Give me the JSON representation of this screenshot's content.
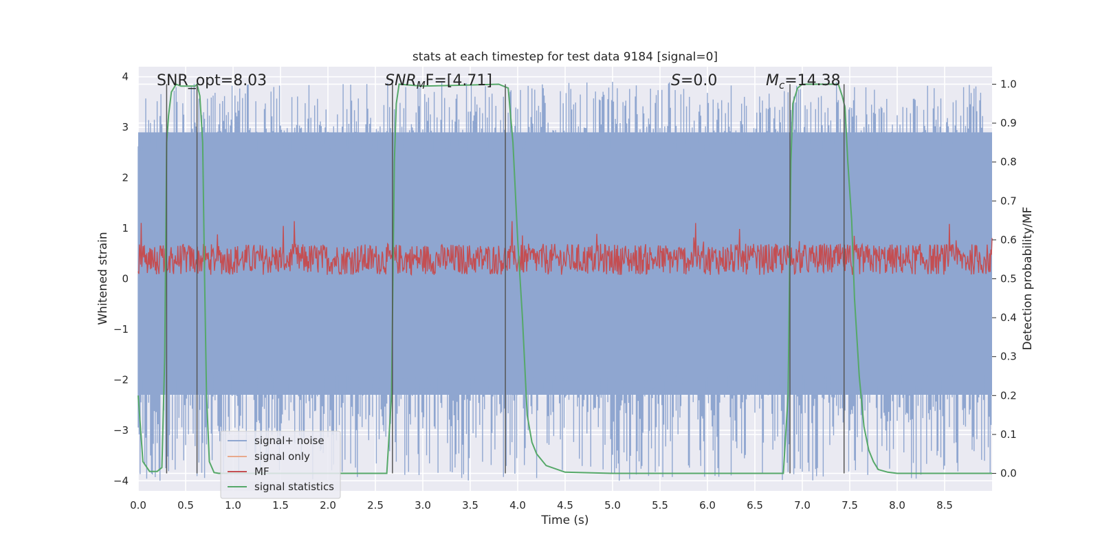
{
  "chart_data": {
    "type": "line",
    "title": "stats at each timestep for test data 9184 [signal=0]",
    "xlabel": "Time (s)",
    "ylabel_left": "Whitened strain",
    "ylabel_right": "Detection probability/MF",
    "xlim": [
      0.0,
      9.0
    ],
    "ylim_left": [
      -4.2,
      4.2
    ],
    "ylim_right": [
      -0.045,
      1.045
    ],
    "grid": true,
    "legend_position": "lower-left",
    "xticks": [
      "0.0",
      "0.5",
      "1.0",
      "1.5",
      "2.0",
      "2.5",
      "3.0",
      "3.5",
      "4.0",
      "4.5",
      "5.0",
      "5.5",
      "6.0",
      "6.5",
      "7.0",
      "7.5",
      "8.0",
      "8.5"
    ],
    "yticks_left": [
      "4",
      "3",
      "2",
      "1",
      "0",
      "−1",
      "−2",
      "−3",
      "−4"
    ],
    "yticks_right": [
      "1.0",
      "0.9",
      "0.8",
      "0.7",
      "0.6",
      "0.5",
      "0.4",
      "0.3",
      "0.2",
      "0.1",
      "0.0"
    ],
    "annotations": {
      "snr_opt": {
        "pre": "SNR_opt=8.03"
      },
      "snr_mf": {
        "base": "SNR",
        "sub": "M",
        "post": "F=[4.71]"
      },
      "s": {
        "sym": "S",
        "post": "=0.0"
      },
      "mc": {
        "base": "M",
        "sub": "c",
        "post": "=14.38"
      }
    },
    "vertical_lines": [
      0.3,
      0.62,
      2.68,
      3.87,
      6.87,
      7.44
    ],
    "series": [
      {
        "name": "signal+ noise",
        "color": "#8fa6d0",
        "axis": "left",
        "envelope": {
          "upper": 2.9,
          "lower": -2.3,
          "peak_max": 3.9,
          "peak_min": -4.0
        }
      },
      {
        "name": "signal only",
        "color": "#e8a98c",
        "axis": "left",
        "values": []
      },
      {
        "name": "MF",
        "color": "#c44e52",
        "axis": "right",
        "envelope": {
          "base": 0.51,
          "typical_high": 0.59,
          "peak_max": 0.65
        }
      },
      {
        "name": "signal statistics",
        "color": "#55a868",
        "axis": "right",
        "x": [
          0.0,
          0.05,
          0.12,
          0.2,
          0.25,
          0.28,
          0.3,
          0.32,
          0.35,
          0.4,
          0.45,
          0.5,
          0.55,
          0.6,
          0.62,
          0.65,
          0.68,
          0.7,
          0.72,
          0.75,
          0.8,
          0.85,
          1.0,
          2.0,
          2.5,
          2.62,
          2.67,
          2.7,
          2.72,
          2.75,
          3.0,
          3.5,
          3.8,
          3.85,
          3.9,
          3.95,
          4.0,
          4.05,
          4.1,
          4.15,
          4.2,
          4.3,
          4.5,
          5.0,
          6.0,
          6.8,
          6.85,
          6.88,
          6.9,
          6.95,
          7.0,
          7.2,
          7.38,
          7.42,
          7.45,
          7.48,
          7.52,
          7.55,
          7.6,
          7.65,
          7.7,
          7.75,
          7.8,
          7.9,
          8.0,
          9.0
        ],
        "values": [
          0.2,
          0.03,
          0.005,
          0.005,
          0.015,
          0.3,
          0.85,
          0.92,
          0.98,
          1.0,
          0.995,
          0.995,
          0.995,
          0.995,
          1.0,
          0.97,
          0.85,
          0.5,
          0.2,
          0.03,
          0.002,
          0.0,
          0.0,
          0.0,
          0.0,
          0.0,
          0.2,
          0.8,
          0.95,
          1.0,
          0.995,
          0.998,
          1.0,
          0.995,
          0.99,
          0.85,
          0.6,
          0.4,
          0.15,
          0.08,
          0.05,
          0.02,
          0.003,
          0.0,
          0.0,
          0.0,
          0.2,
          0.8,
          0.95,
          0.99,
          1.0,
          1.0,
          1.0,
          0.97,
          0.94,
          0.8,
          0.65,
          0.45,
          0.25,
          0.12,
          0.06,
          0.03,
          0.01,
          0.003,
          0.0,
          0.0
        ]
      }
    ]
  }
}
